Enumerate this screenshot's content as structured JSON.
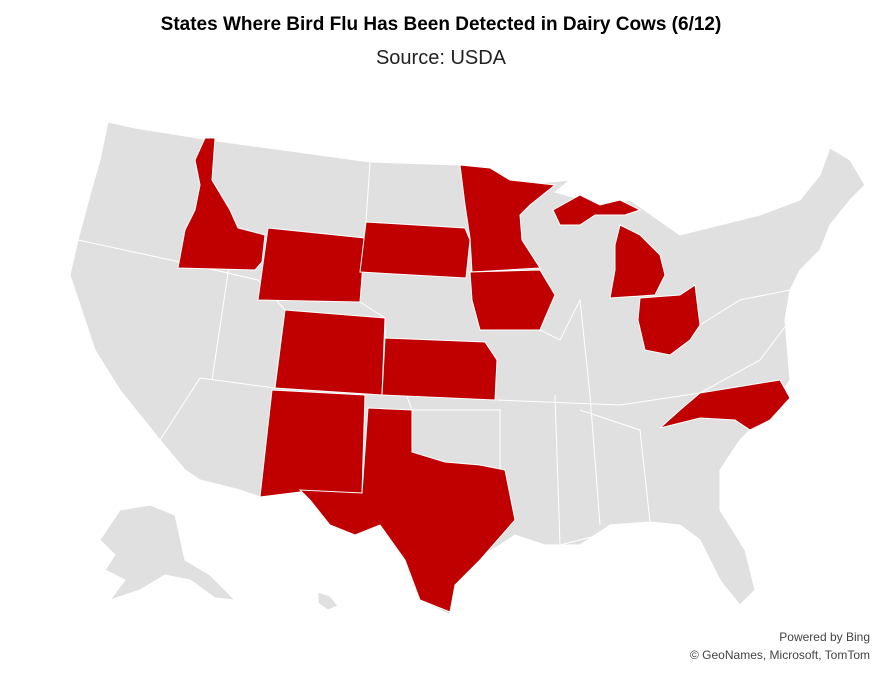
{
  "header": {
    "title": "States Where Bird Flu Has Been Detected in Dairy Cows (6/12)",
    "subtitle": "Source: USDA"
  },
  "credits": [
    "Powered by Bing",
    "© GeoNames, Microsoft, TomTom"
  ],
  "highlight_color": "#c00000"
}
